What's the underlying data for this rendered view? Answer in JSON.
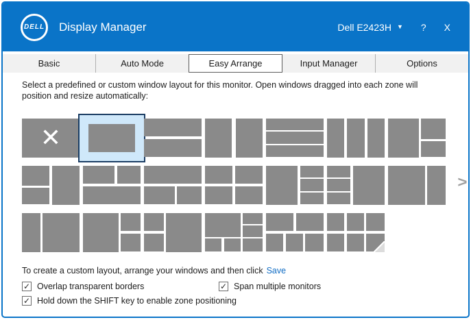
{
  "window": {
    "title": "Display Manager",
    "logo_text": "DELL",
    "monitor_selector": "Dell E2423H",
    "help_label": "?",
    "close_label": "X"
  },
  "icons": {
    "dropdown": "▼",
    "chevron_right": ">",
    "check": "✓",
    "delete_layout": "✕"
  },
  "tabs": [
    {
      "label": "Basic",
      "selected": false
    },
    {
      "label": "Auto Mode",
      "selected": false
    },
    {
      "label": "Easy Arrange",
      "selected": true
    },
    {
      "label": "Input Manager",
      "selected": false
    },
    {
      "label": "Options",
      "selected": false
    }
  ],
  "easy_arrange": {
    "instruction": "Select a predefined or custom window layout for this monitor.  Open windows dragged into each zone will position and resize automatically:",
    "layouts": [
      {
        "name": "disable",
        "glyph": "✕",
        "zones": [
          [
            0,
            0,
            100,
            100
          ]
        ]
      },
      {
        "name": "single",
        "selected": true,
        "zones": [
          [
            0,
            0,
            100,
            100
          ]
        ]
      },
      {
        "name": "2-rows",
        "zones": [
          [
            0,
            0,
            100,
            47
          ],
          [
            0,
            53,
            100,
            47
          ]
        ]
      },
      {
        "name": "2-columns",
        "zones": [
          [
            0,
            0,
            47,
            100
          ],
          [
            53,
            0,
            47,
            100
          ]
        ]
      },
      {
        "name": "3-rows",
        "zones": [
          [
            0,
            0,
            100,
            30
          ],
          [
            0,
            35,
            100,
            30
          ],
          [
            0,
            70,
            100,
            30
          ]
        ]
      },
      {
        "name": "3-columns",
        "zones": [
          [
            0,
            0,
            30,
            100
          ],
          [
            35,
            0,
            30,
            100
          ],
          [
            70,
            0,
            30,
            100
          ]
        ]
      },
      {
        "name": "left-plus-right-2-rows",
        "zones": [
          [
            0,
            0,
            53,
            100
          ],
          [
            57,
            0,
            43,
            53
          ],
          [
            57,
            58,
            43,
            42
          ]
        ]
      },
      {
        "name": "left-2-rows-plus-right",
        "zones": [
          [
            0,
            0,
            48,
            52
          ],
          [
            0,
            57,
            48,
            43
          ],
          [
            52,
            0,
            48,
            100
          ]
        ]
      },
      {
        "name": "top-2-cols-plus-bottom",
        "zones": [
          [
            0,
            0,
            55,
            47
          ],
          [
            59,
            0,
            41,
            47
          ],
          [
            0,
            53,
            100,
            47
          ]
        ]
      },
      {
        "name": "top-plus-bottom-2-cols",
        "zones": [
          [
            0,
            0,
            100,
            47
          ],
          [
            0,
            53,
            53,
            47
          ],
          [
            57,
            53,
            43,
            47
          ]
        ]
      },
      {
        "name": "quad-grid",
        "zones": [
          [
            0,
            0,
            48,
            47
          ],
          [
            52,
            0,
            48,
            47
          ],
          [
            0,
            53,
            48,
            47
          ],
          [
            52,
            53,
            48,
            47
          ]
        ]
      },
      {
        "name": "left-plus-right-3-rows",
        "zones": [
          [
            0,
            0,
            55,
            100
          ],
          [
            59,
            0,
            41,
            30
          ],
          [
            59,
            35,
            41,
            30
          ],
          [
            59,
            70,
            41,
            30
          ]
        ]
      },
      {
        "name": "left-3-rows-plus-right",
        "zones": [
          [
            0,
            0,
            41,
            30
          ],
          [
            0,
            35,
            41,
            30
          ],
          [
            0,
            70,
            41,
            30
          ],
          [
            45,
            0,
            55,
            100
          ]
        ]
      },
      {
        "name": "2-columns-wide-left",
        "zones": [
          [
            0,
            0,
            64,
            100
          ],
          [
            68,
            0,
            32,
            100
          ]
        ]
      },
      {
        "name": "2-columns-narrow-left",
        "zones": [
          [
            0,
            0,
            32,
            100
          ],
          [
            36,
            0,
            64,
            100
          ]
        ]
      },
      {
        "name": "left-plus-right-2-rows-narrow",
        "zones": [
          [
            0,
            0,
            62,
            100
          ],
          [
            66,
            0,
            34,
            47
          ],
          [
            66,
            53,
            34,
            47
          ]
        ]
      },
      {
        "name": "left-2-rows-narrow-plus-right",
        "zones": [
          [
            0,
            0,
            34,
            47
          ],
          [
            0,
            53,
            34,
            47
          ],
          [
            38,
            0,
            62,
            100
          ]
        ]
      },
      {
        "name": "big-top-left-six-zone",
        "zones": [
          [
            0,
            0,
            62,
            62
          ],
          [
            66,
            0,
            34,
            29
          ],
          [
            66,
            33,
            34,
            29
          ],
          [
            0,
            66,
            29,
            34
          ],
          [
            33,
            66,
            29,
            34
          ],
          [
            66,
            66,
            34,
            34
          ]
        ]
      },
      {
        "name": "2-over-3",
        "zones": [
          [
            0,
            0,
            48,
            47
          ],
          [
            52,
            0,
            48,
            47
          ],
          [
            0,
            53,
            30,
            47
          ],
          [
            34,
            53,
            30,
            47
          ],
          [
            68,
            53,
            32,
            47
          ]
        ]
      },
      {
        "name": "3x2-grid-custom",
        "fold": true,
        "zones": [
          [
            0,
            0,
            30,
            47
          ],
          [
            34,
            0,
            30,
            47
          ],
          [
            68,
            0,
            32,
            47
          ],
          [
            0,
            53,
            30,
            47
          ],
          [
            34,
            53,
            30,
            47
          ],
          [
            68,
            53,
            32,
            47
          ]
        ]
      }
    ],
    "custom_layout_text": "To create a custom layout, arrange your windows and then click",
    "save_link": "Save",
    "checkboxes": [
      {
        "label": "Overlap transparent borders",
        "checked": true
      },
      {
        "label": "Span multiple monitors",
        "checked": true
      },
      {
        "label": "Hold down the SHIFT key to enable zone positioning",
        "checked": true
      }
    ]
  },
  "colors": {
    "titlebar_blue": "#0a74c8",
    "tab_bg": "#f1f1f1",
    "zone_gray": "#8a8a8a",
    "selected_fill": "#cfe8fa",
    "selected_border": "#1b3d63",
    "link_blue": "#0f6cc4",
    "chevron_gray": "#a0a0a0",
    "text": "#1b1b1b",
    "check_border": "#6b6b6b",
    "check_mark": "#2b2b2b",
    "fold": "#dcdcdc"
  }
}
